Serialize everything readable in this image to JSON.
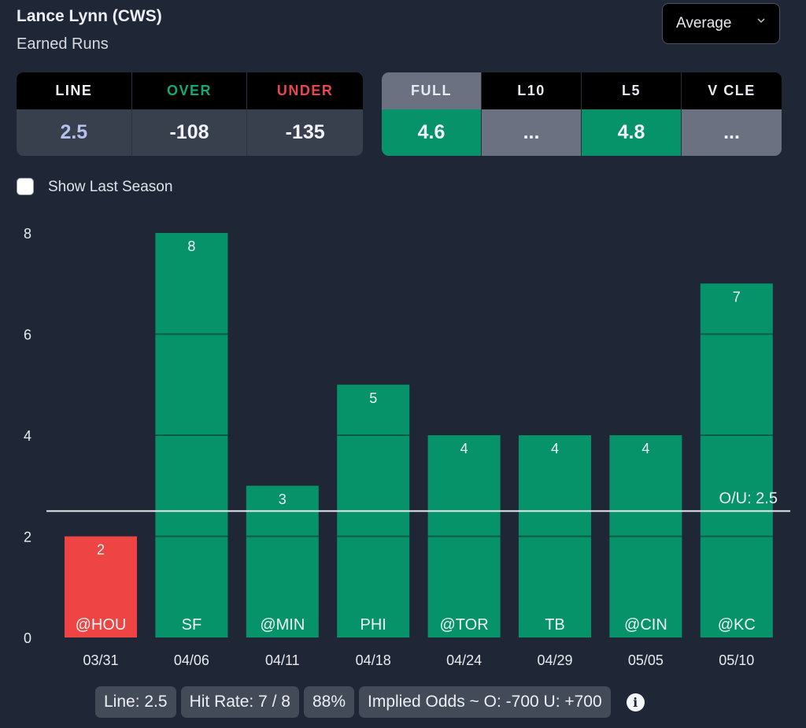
{
  "header": {
    "player": "Lance Lynn (CWS)",
    "stat": "Earned Runs",
    "mode_dropdown": {
      "selected": "Average",
      "icon": "chevron-down-icon"
    }
  },
  "odds_table": {
    "columns": [
      {
        "label": "LINE",
        "value": "2.5",
        "label_color": "#f2f3f6",
        "value_color": "#b7c1ef"
      },
      {
        "label": "OVER",
        "value": "-108",
        "label_color": "#14a874",
        "value_color": "#f2f3f6"
      },
      {
        "label": "UNDER",
        "value": "-135",
        "label_color": "#e8474b",
        "value_color": "#f2f3f6"
      }
    ]
  },
  "split_table": {
    "columns": [
      {
        "label": "FULL",
        "value": "4.6",
        "selected": true,
        "status": "green"
      },
      {
        "label": "L10",
        "value": "...",
        "selected": false,
        "status": "gray"
      },
      {
        "label": "L5",
        "value": "4.8",
        "selected": false,
        "status": "green"
      },
      {
        "label": "V CLE",
        "value": "...",
        "selected": false,
        "status": "gray"
      }
    ]
  },
  "show_last_season": {
    "label": "Show Last Season",
    "checked": false
  },
  "chart_data": {
    "type": "bar",
    "title": "",
    "xlabel": "",
    "ylabel": "",
    "categories": [
      "03/31",
      "04/06",
      "04/11",
      "04/18",
      "04/24",
      "04/29",
      "05/05",
      "05/10"
    ],
    "opponents": [
      "@HOU",
      "SF",
      "@MIN",
      "PHI",
      "@TOR",
      "TB",
      "@CIN",
      "@KC"
    ],
    "values": [
      2,
      8,
      3,
      5,
      4,
      4,
      4,
      7
    ],
    "ylim": [
      0,
      8
    ],
    "yticks": [
      0,
      2,
      4,
      6,
      8
    ],
    "threshold": {
      "value": 2.5,
      "label": "O/U: 2.5"
    },
    "colors": {
      "over": "#07936a",
      "under": "#ee4444",
      "gridline_in_bar": "#0b5a43",
      "threshold": "#e6e8ec"
    },
    "grid": "horizontal lines shown only inside bars",
    "legend": "none"
  },
  "summary": {
    "line": "Line: 2.5",
    "hit_rate": "Hit Rate: 7 / 8",
    "percent": "88%",
    "implied_odds": "Implied Odds ~ O: -700 U: +700",
    "info_icon": "i"
  }
}
